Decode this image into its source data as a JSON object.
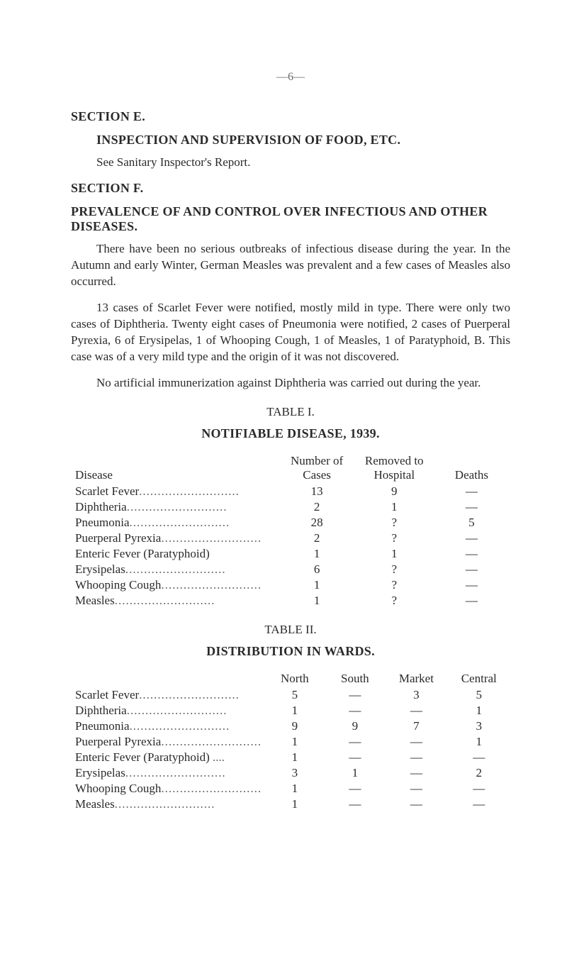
{
  "pageNumber": "—6—",
  "sectionE": {
    "heading": "SECTION E.",
    "title": "INSPECTION AND SUPERVISION OF FOOD, ETC.",
    "text": "See Sanitary Inspector's Report."
  },
  "sectionF": {
    "heading": "SECTION F.",
    "title": "PREVALENCE OF AND CONTROL OVER INFECTIOUS AND OTHER DISEASES.",
    "para1": "There have been no serious outbreaks of infectious disease during the year. In the Autumn and early Winter, German Measles was prevalent and a few cases of Measles also occurred.",
    "para2": "13 cases of Scarlet Fever were notified, mostly mild in type. There were only two cases of Diphtheria. Twenty eight cases of Pneumonia were notified, 2 cases of Puerperal Pyrexia, 6 of Erysipelas, 1 of Whooping Cough, 1 of Measles, 1 of Paratyphoid, B. This case was of a very mild type and the origin of it was not discovered.",
    "para3": "No artificial immunerization against Diphtheria was carried out during the year."
  },
  "table1": {
    "caption": "TABLE I.",
    "title": "NOTIFIABLE DISEASE, 1939.",
    "headers": {
      "disease": "Disease",
      "cases": "Number of\nCases",
      "removed": "Removed to\nHospital",
      "deaths": "Deaths"
    },
    "rows": [
      {
        "disease": "Scarlet Fever",
        "cases": "13",
        "removed": "9",
        "deaths": "—"
      },
      {
        "disease": "Diphtheria",
        "cases": "2",
        "removed": "1",
        "deaths": "—"
      },
      {
        "disease": "Pneumonia",
        "cases": "28",
        "removed": "?",
        "deaths": "5"
      },
      {
        "disease": "Puerperal Pyrexia",
        "cases": "2",
        "removed": "?",
        "deaths": "—"
      },
      {
        "disease": "Enteric Fever (Paratyphoid)",
        "cases": "1",
        "removed": "1",
        "deaths": "—"
      },
      {
        "disease": "Erysipelas",
        "cases": "6",
        "removed": "?",
        "deaths": "—"
      },
      {
        "disease": "Whooping Cough",
        "cases": "1",
        "removed": "?",
        "deaths": "—"
      },
      {
        "disease": "Measles",
        "cases": "1",
        "removed": "?",
        "deaths": "—"
      }
    ]
  },
  "table2": {
    "caption": "TABLE II.",
    "title": "DISTRIBUTION IN WARDS.",
    "headers": {
      "north": "North",
      "south": "South",
      "market": "Market",
      "central": "Central"
    },
    "rows": [
      {
        "disease": "Scarlet Fever",
        "north": "5",
        "south": "—",
        "market": "3",
        "central": "5"
      },
      {
        "disease": "Diphtheria",
        "north": "1",
        "south": "—",
        "market": "—",
        "central": "1"
      },
      {
        "disease": "Pneumonia",
        "north": "9",
        "south": "9",
        "market": "7",
        "central": "3"
      },
      {
        "disease": "Puerperal Pyrexia",
        "north": "1",
        "south": "—",
        "market": "—",
        "central": "1"
      },
      {
        "disease": "Enteric Fever (Paratyphoid)",
        "north": "1",
        "south": "—",
        "market": "—",
        "central": "—"
      },
      {
        "disease": "Erysipelas",
        "north": "3",
        "south": "1",
        "market": "—",
        "central": "2"
      },
      {
        "disease": "Whooping Cough",
        "north": "1",
        "south": "—",
        "market": "—",
        "central": "—"
      },
      {
        "disease": "Measles",
        "north": "1",
        "south": "—",
        "market": "—",
        "central": "—"
      }
    ]
  },
  "colors": {
    "background": "#ffffff",
    "text": "#2a2a2a",
    "muted": "#666666"
  },
  "typography": {
    "body_fontsize_pt": 12,
    "heading_fontsize_pt": 13,
    "font_family": "Times New Roman, serif"
  }
}
